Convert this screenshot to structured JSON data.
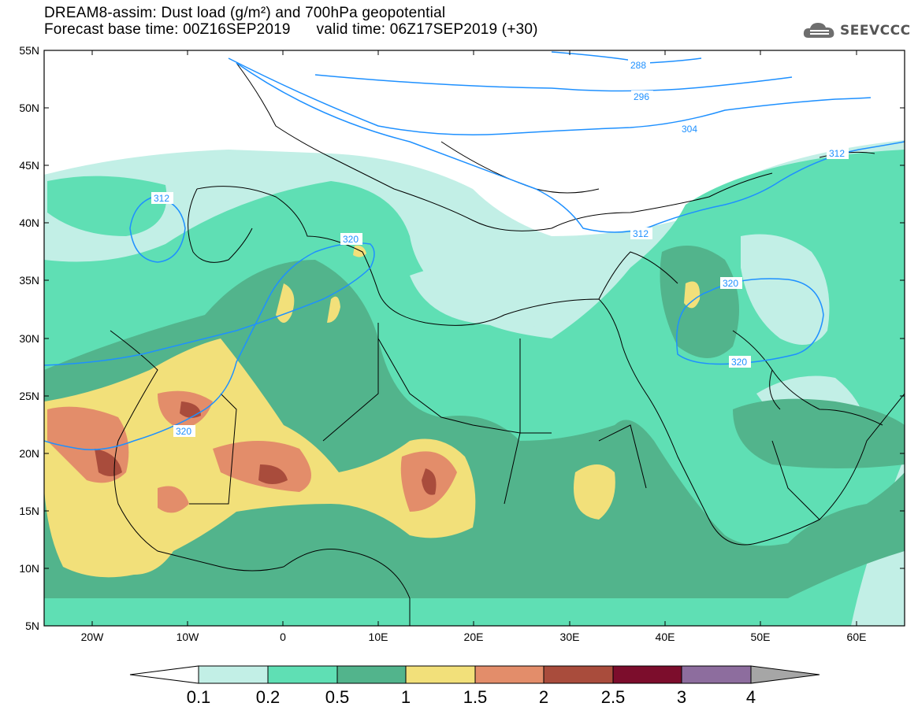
{
  "header": {
    "line1": "DREAM8-assim: Dust load (g/m²) and 700hPa geopotential",
    "line2": "Forecast base time: 00Z16SEP2019      valid time: 06Z17SEP2019 (+30)"
  },
  "logo": {
    "text": "SEEVCCC",
    "icon": "cloud-icon"
  },
  "map": {
    "lat_ticks": [
      "55N",
      "50N",
      "45N",
      "40N",
      "35N",
      "30N",
      "25N",
      "20N",
      "15N",
      "10N",
      "5N"
    ],
    "lon_ticks": [
      "20W",
      "10W",
      "0",
      "10E",
      "20E",
      "30E",
      "40E",
      "50E",
      "60E"
    ],
    "lon_range": [
      -25,
      65
    ],
    "lat_range": [
      5,
      55
    ],
    "contour_labels": [
      "288",
      "296",
      "304",
      "312",
      "312",
      "312",
      "320",
      "320",
      "320",
      "320"
    ]
  },
  "colorbar": {
    "labels": [
      "0.1",
      "0.2",
      "0.5",
      "1",
      "1.5",
      "2",
      "2.5",
      "3",
      "4"
    ],
    "colors": [
      "#ffffff",
      "#c2efe6",
      "#5fdfb4",
      "#52b48c",
      "#f2e07a",
      "#e38d6a",
      "#a94c3c",
      "#7c0d2c",
      "#8d6d9e",
      "#a6a6a6"
    ]
  },
  "colors": {
    "land_outline": "#000000",
    "contour": "#1e90ff",
    "light_dust": "#c2efe6",
    "mid_dust": "#5fdfb4",
    "dark_dust": "#52b48c",
    "yellow": "#f2e07a",
    "orange": "#e38d6a",
    "brown": "#a94c3c"
  }
}
